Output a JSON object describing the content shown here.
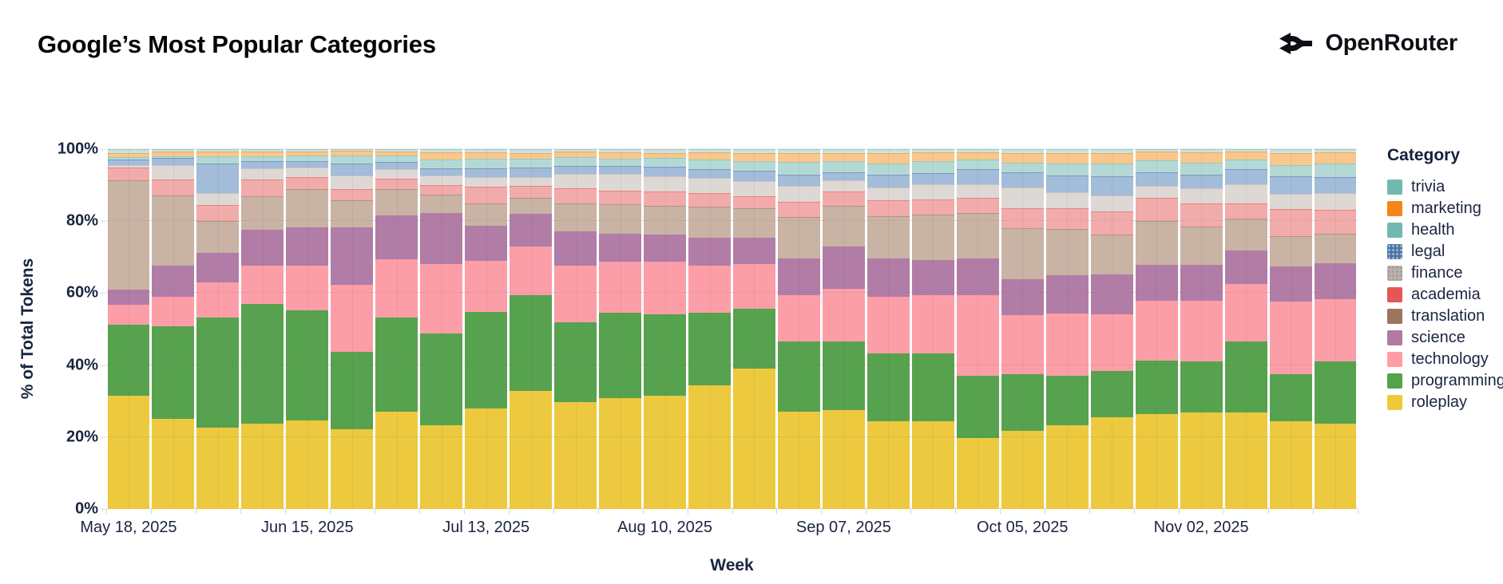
{
  "header": {
    "title": "Google’s Most Popular Categories",
    "brand": "OpenRouter"
  },
  "chart_data": {
    "type": "bar",
    "stacked": true,
    "normalized": true,
    "title": "Google’s Most Popular Categories",
    "xlabel": "Week",
    "ylabel": "% of Total Tokens",
    "ylim": [
      0,
      100
    ],
    "grid": true,
    "legend_position": "right",
    "legend_title": "Category",
    "y_ticks": [
      {
        "value": 0,
        "label": "0%"
      },
      {
        "value": 20,
        "label": "20%"
      },
      {
        "value": 40,
        "label": "40%"
      },
      {
        "value": 60,
        "label": "60%"
      },
      {
        "value": 80,
        "label": "80%"
      },
      {
        "value": 100,
        "label": "100%"
      }
    ],
    "x_tick_indices": [
      0,
      4,
      8,
      12,
      16,
      20,
      24
    ],
    "x_tick_labels": [
      "May 18, 2025",
      "Jun 15, 2025",
      "Jul 13, 2025",
      "Aug 10, 2025",
      "Sep 07, 2025",
      "Oct 05, 2025",
      "Nov 02, 2025"
    ],
    "categories": [
      "May 18, 2025",
      "May 25, 2025",
      "Jun 01, 2025",
      "Jun 08, 2025",
      "Jun 15, 2025",
      "Jun 22, 2025",
      "Jun 29, 2025",
      "Jul 06, 2025",
      "Jul 13, 2025",
      "Jul 20, 2025",
      "Jul 27, 2025",
      "Aug 03, 2025",
      "Aug 10, 2025",
      "Aug 17, 2025",
      "Aug 24, 2025",
      "Aug 31, 2025",
      "Sep 07, 2025",
      "Sep 14, 2025",
      "Sep 21, 2025",
      "Sep 28, 2025",
      "Oct 05, 2025",
      "Oct 12, 2025",
      "Oct 19, 2025",
      "Oct 26, 2025",
      "Nov 02, 2025",
      "Nov 09, 2025",
      "Nov 16, 2025",
      "Nov 23, 2025"
    ],
    "series": [
      {
        "name": "roleplay",
        "color": "#eeca3b",
        "fill": "#edc93f",
        "values": [
          32.0,
          25.5,
          23.0,
          24.0,
          25.1,
          22.5,
          27.6,
          23.6,
          28.5,
          33.4,
          30.2,
          31.3,
          32.1,
          35.0,
          39.8,
          27.6,
          28.0,
          24.7,
          24.8,
          19.9,
          22.0,
          23.6,
          26.0,
          26.9,
          27.3,
          27.3,
          24.7,
          24.0
        ]
      },
      {
        "name": "programming",
        "color": "#54a24b",
        "fill": "#57a24e",
        "values": [
          20.0,
          26.2,
          31.2,
          34.0,
          31.0,
          21.8,
          26.6,
          25.9,
          27.2,
          27.1,
          22.6,
          24.1,
          22.9,
          20.4,
          16.7,
          19.6,
          19.2,
          19.2,
          19.1,
          17.5,
          16.1,
          13.8,
          12.9,
          14.9,
          14.4,
          19.9,
          13.3,
          17.7
        ]
      },
      {
        "name": "technology",
        "color": "#ff9da6",
        "fill": "#fc9ea7",
        "values": [
          5.5,
          8.1,
          9.7,
          10.7,
          12.6,
          18.8,
          16.3,
          19.6,
          14.4,
          13.7,
          15.9,
          14.4,
          14.8,
          13.3,
          12.5,
          13.0,
          14.8,
          15.9,
          16.3,
          22.8,
          16.4,
          17.5,
          15.9,
          16.9,
          17.0,
          16.3,
          20.3,
          17.4
        ]
      },
      {
        "name": "science",
        "color": "#b279a2",
        "fill": "#b17ca6",
        "values": [
          4.1,
          8.5,
          8.1,
          10.0,
          10.7,
          16.3,
          12.2,
          14.4,
          9.7,
          8.9,
          9.6,
          7.7,
          7.4,
          7.7,
          7.4,
          10.3,
          11.8,
          10.7,
          9.9,
          10.3,
          10.0,
          10.7,
          11.1,
          10.0,
          10.0,
          9.2,
          9.9,
          9.9
        ]
      },
      {
        "name": "translation",
        "color": "#9d755d",
        "fill": "#c9b3a4",
        "values": [
          31.0,
          19.9,
          8.9,
          9.3,
          10.7,
          7.4,
          7.2,
          4.8,
          6.2,
          4.4,
          7.7,
          8.2,
          8.1,
          8.5,
          8.1,
          11.5,
          11.5,
          11.8,
          12.6,
          12.6,
          14.4,
          12.9,
          11.1,
          12.2,
          10.7,
          8.9,
          8.5,
          8.2
        ]
      },
      {
        "name": "academia",
        "color": "#e45756",
        "fill": "#f1abaa",
        "values": [
          3.2,
          4.4,
          4.4,
          4.4,
          3.0,
          3.0,
          2.8,
          2.6,
          4.4,
          3.3,
          4.1,
          3.7,
          3.7,
          3.7,
          3.3,
          4.1,
          3.7,
          4.4,
          4.1,
          4.1,
          5.5,
          5.6,
          6.3,
          6.3,
          6.3,
          4.1,
          7.4,
          6.7
        ]
      },
      {
        "name": "finance",
        "color": "#bab0ac",
        "fill": "#ded8d5",
        "legend_pattern": "dots-dark",
        "values": [
          0.5,
          3.7,
          3.0,
          3.0,
          2.6,
          3.7,
          2.6,
          2.6,
          2.6,
          2.2,
          3.7,
          4.4,
          4.1,
          4.1,
          4.1,
          4.4,
          3.0,
          3.4,
          4.1,
          3.7,
          5.6,
          4.4,
          4.4,
          3.3,
          4.1,
          5.2,
          4.1,
          4.4
        ]
      },
      {
        "name": "legal",
        "color": "#4c78a8",
        "fill": "#a2bcd9",
        "legend_pattern": "dots-light",
        "values": [
          1.5,
          1.8,
          8.3,
          1.8,
          1.6,
          3.0,
          1.8,
          1.8,
          2.2,
          2.4,
          2.2,
          2.2,
          2.6,
          2.2,
          2.6,
          3.0,
          2.2,
          3.3,
          3.0,
          4.1,
          4.1,
          4.4,
          5.2,
          3.7,
          3.7,
          4.1,
          4.8,
          4.4
        ]
      },
      {
        "name": "health",
        "color": "#72b7b2",
        "fill": "#b4d9d5",
        "values": [
          0.4,
          0.2,
          1.9,
          1.3,
          1.4,
          2.2,
          1.6,
          2.2,
          2.6,
          2.4,
          2.2,
          1.8,
          2.2,
          2.6,
          2.6,
          3.3,
          2.9,
          3.0,
          3.2,
          2.4,
          2.6,
          3.3,
          3.5,
          3.0,
          3.0,
          2.6,
          3.0,
          3.6
        ]
      },
      {
        "name": "marketing",
        "color": "#f58518",
        "fill": "#f9c78c",
        "values": [
          1.0,
          1.2,
          1.0,
          1.0,
          0.8,
          1.0,
          0.9,
          1.8,
          1.5,
          1.4,
          1.3,
          1.5,
          1.3,
          1.9,
          2.0,
          2.2,
          2.0,
          2.6,
          2.3,
          2.0,
          2.6,
          2.8,
          2.8,
          2.4,
          2.8,
          2.0,
          3.0,
          3.0
        ]
      },
      {
        "name": "trivia",
        "color": "#72b7b2",
        "fill": "#c8e3e0",
        "values": [
          0.8,
          0.5,
          0.5,
          0.5,
          0.5,
          0.3,
          0.4,
          0.7,
          0.7,
          0.8,
          0.5,
          0.7,
          0.8,
          0.6,
          0.9,
          1.0,
          0.9,
          1.0,
          0.6,
          0.6,
          0.8,
          0.8,
          0.8,
          0.4,
          0.7,
          0.4,
          1.0,
          0.7
        ]
      }
    ]
  }
}
